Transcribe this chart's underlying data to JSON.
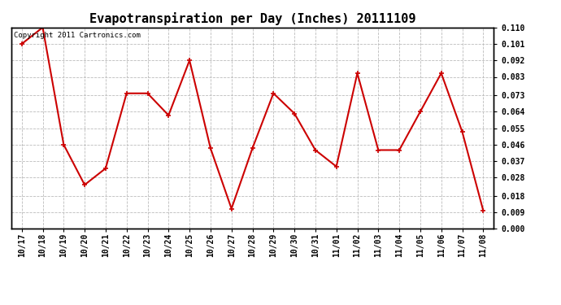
{
  "title": "Evapotranspiration per Day (Inches) 20111109",
  "copyright_text": "Copyright 2011 Cartronics.com",
  "x_labels": [
    "10/17",
    "10/18",
    "10/19",
    "10/20",
    "10/21",
    "10/22",
    "10/23",
    "10/24",
    "10/25",
    "10/26",
    "10/27",
    "10/28",
    "10/29",
    "10/30",
    "10/31",
    "11/01",
    "11/02",
    "11/03",
    "11/04",
    "11/05",
    "11/06",
    "11/07",
    "11/08"
  ],
  "y_values": [
    0.101,
    0.11,
    0.046,
    0.024,
    0.033,
    0.074,
    0.074,
    0.062,
    0.092,
    0.044,
    0.011,
    0.044,
    0.074,
    0.063,
    0.043,
    0.034,
    0.085,
    0.043,
    0.043,
    0.064,
    0.085,
    0.053,
    0.01
  ],
  "line_color": "#cc0000",
  "marker": "+",
  "marker_size": 5,
  "marker_color": "#cc0000",
  "background_color": "#ffffff",
  "grid_color": "#bbbbbb",
  "ylim": [
    0.0,
    0.11
  ],
  "yticks": [
    0.0,
    0.009,
    0.018,
    0.028,
    0.037,
    0.046,
    0.055,
    0.064,
    0.073,
    0.083,
    0.092,
    0.101,
    0.11
  ],
  "title_fontsize": 11,
  "copyright_fontsize": 6.5,
  "tick_fontsize": 7,
  "line_width": 1.5
}
